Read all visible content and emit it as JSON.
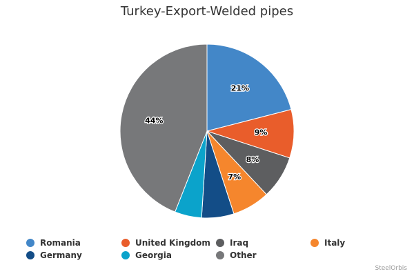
{
  "chart_data": {
    "type": "pie",
    "title": "Turkey-Export-Welded pipes",
    "categories": [
      "Romania",
      "United Kingdom",
      "Iraq",
      "Italy",
      "Germany",
      "Georgia",
      "Other"
    ],
    "values": [
      21,
      9,
      8,
      7,
      6,
      5,
      44
    ],
    "labels": [
      "21%",
      "9%",
      "8%",
      "7%",
      "",
      "",
      "44%"
    ],
    "colors": [
      "#4387c8",
      "#e95d2b",
      "#5d5e60",
      "#f5862d",
      "#134d87",
      "#0ba3cb",
      "#77787a"
    ],
    "legend_position": "bottom",
    "start_angle": "top, clockwise"
  },
  "credits": "SteelOrbis"
}
